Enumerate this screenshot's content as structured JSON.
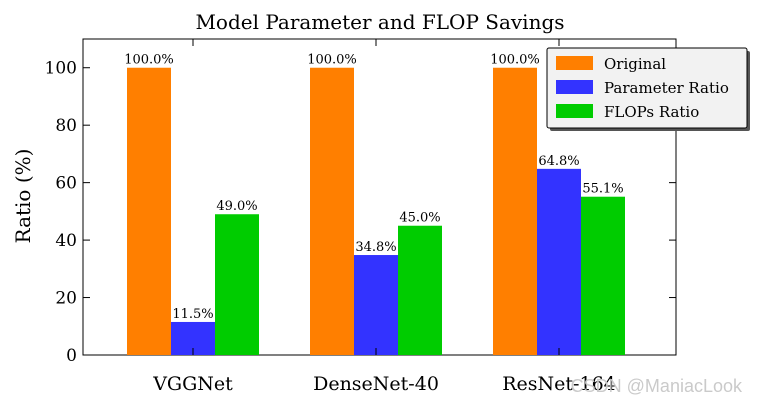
{
  "chart_data": {
    "type": "bar",
    "title": "Model Parameter and FLOP Savings",
    "xlabel": "",
    "ylabel": "Ratio (%)",
    "ylim": [
      0,
      110
    ],
    "yticks": [
      0,
      20,
      40,
      60,
      80,
      100
    ],
    "categories": [
      "VGGNet",
      "DenseNet-40",
      "ResNet-164"
    ],
    "series": [
      {
        "name": "Original",
        "color": "#ff7f00",
        "values": [
          100.0,
          100.0,
          100.0
        ],
        "labels": [
          "100.0%",
          "100.0%",
          "100.0%"
        ]
      },
      {
        "name": "Parameter Ratio",
        "color": "#3333ff",
        "values": [
          11.5,
          34.8,
          64.8
        ],
        "labels": [
          "11.5%",
          "34.8%",
          "64.8%"
        ]
      },
      {
        "name": "FLOPs Ratio",
        "color": "#00cc00",
        "values": [
          49.0,
          45.0,
          55.1
        ],
        "labels": [
          "49.0%",
          "45.0%",
          "55.1%"
        ]
      }
    ],
    "legend_position": "top-right",
    "grid": false
  },
  "watermark": "CSDN @ManiacLook"
}
